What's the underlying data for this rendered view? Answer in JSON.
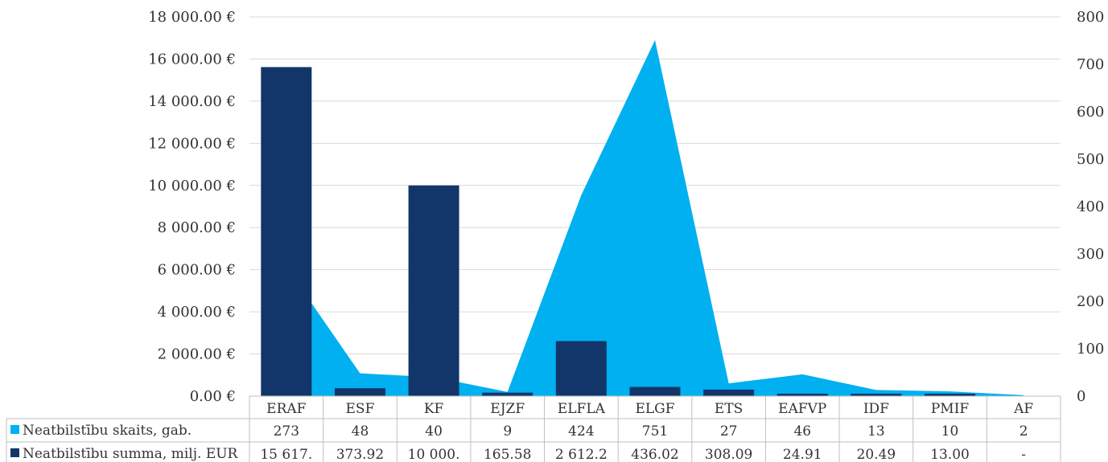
{
  "chart_data": {
    "type": "bar",
    "categories": [
      "ERAF",
      "ESF",
      "KF",
      "EJZF",
      "ELFLA",
      "ELGF",
      "ETS",
      "EAFVP",
      "IDF",
      "PMIF",
      "AF"
    ],
    "series": [
      {
        "name": "Neatbilstību skaits, gab.",
        "kind": "area",
        "axis": "right",
        "color": "#00b0f0",
        "values": [
          273,
          48,
          40,
          9,
          424,
          751,
          27,
          46,
          13,
          10,
          2
        ],
        "labels": [
          "273",
          "48",
          "40",
          "9",
          "424",
          "751",
          "27",
          "46",
          "13",
          "10",
          "2"
        ]
      },
      {
        "name": "Neatbilstību summa, milj. EUR",
        "kind": "bar",
        "axis": "left",
        "color": "#12366a",
        "values": [
          15617,
          373.92,
          10000,
          165.58,
          2612.2,
          436.02,
          308.09,
          24.91,
          20.49,
          13.0,
          0
        ],
        "labels": [
          "15 617.",
          "373.92",
          "10 000.",
          "165.58",
          "2 612.2",
          "436.02",
          "308.09",
          "24.91",
          "20.49",
          "13.00",
          "-"
        ]
      }
    ],
    "left_axis": {
      "min": 0,
      "max": 18000,
      "ticks": [
        {
          "value": 0,
          "label": "0.00 €"
        },
        {
          "value": 2000,
          "label": "2 000.00 €"
        },
        {
          "value": 4000,
          "label": "4 000.00 €"
        },
        {
          "value": 6000,
          "label": "6 000.00 €"
        },
        {
          "value": 8000,
          "label": "8 000.00 €"
        },
        {
          "value": 10000,
          "label": "10 000.00 €"
        },
        {
          "value": 12000,
          "label": "12 000.00 €"
        },
        {
          "value": 14000,
          "label": "14 000.00 €"
        },
        {
          "value": 16000,
          "label": "16 000.00 €"
        },
        {
          "value": 18000,
          "label": "18 000.00 €"
        }
      ]
    },
    "right_axis": {
      "min": 0,
      "max": 800,
      "ticks": [
        {
          "value": 0,
          "label": "0"
        },
        {
          "value": 100,
          "label": "100"
        },
        {
          "value": 200,
          "label": "200"
        },
        {
          "value": 300,
          "label": "300"
        },
        {
          "value": 400,
          "label": "400"
        },
        {
          "value": 500,
          "label": "500"
        },
        {
          "value": 600,
          "label": "600"
        },
        {
          "value": 700,
          "label": "700"
        },
        {
          "value": 800,
          "label": "800"
        }
      ]
    },
    "grid": true,
    "data_table": true,
    "title": "",
    "xlabel": "",
    "ylabel": ""
  }
}
